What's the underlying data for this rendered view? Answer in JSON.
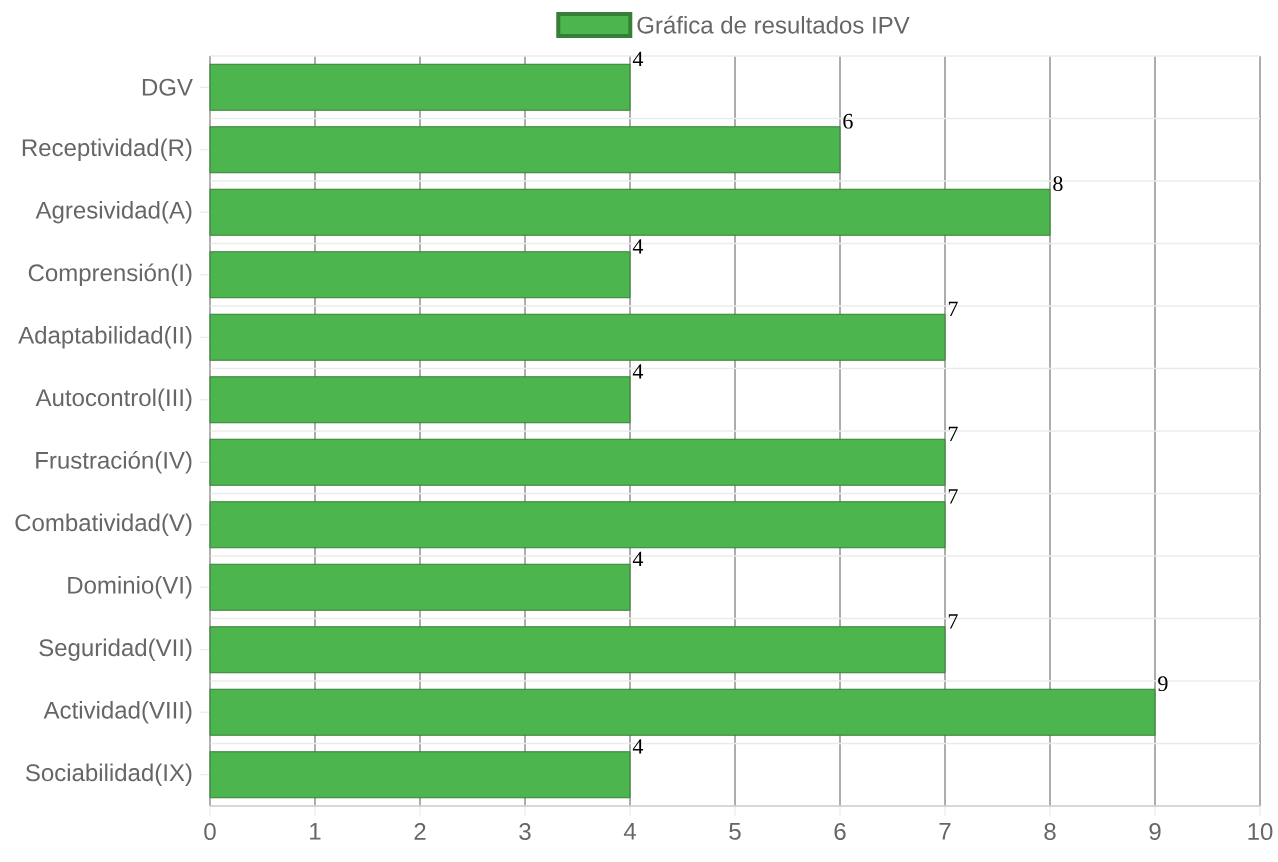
{
  "chart_data": {
    "type": "bar",
    "orientation": "horizontal",
    "categories": [
      "DGV",
      "Receptividad(R)",
      "Agresividad(A)",
      "Comprensión(I)",
      "Adaptabilidad(II)",
      "Autocontrol(III)",
      "Frustración(IV)",
      "Combatividad(V)",
      "Dominio(VI)",
      "Seguridad(VII)",
      "Actividad(VIII)",
      "Sociabilidad(IX)"
    ],
    "series": [
      {
        "name": "Gráfica de resultados IPV",
        "color": "#4db54d",
        "values": [
          4,
          6,
          8,
          4,
          7,
          4,
          7,
          7,
          4,
          7,
          9,
          4
        ]
      }
    ],
    "xlim": [
      0,
      10
    ],
    "xticks": [
      0,
      1,
      2,
      3,
      4,
      5,
      6,
      7,
      8,
      9,
      10
    ],
    "grid": true,
    "legend": "top",
    "data_labels": true
  }
}
